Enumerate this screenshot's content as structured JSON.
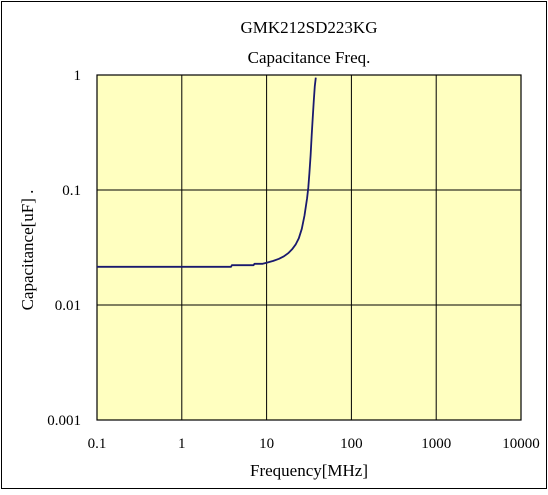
{
  "chart_data": {
    "type": "line",
    "title": "GMK212SD223KG",
    "subtitle": "Capacitance Freq.",
    "xlabel": "Frequency[MHz]",
    "ylabel": "Capacitance[uF]  .",
    "xscale": "log",
    "yscale": "log",
    "xlim": [
      0.1,
      10000
    ],
    "ylim": [
      0.001,
      1
    ],
    "x_ticks": [
      "0.1",
      "1",
      "10",
      "100",
      "1000",
      "10000"
    ],
    "y_ticks": [
      "0.001",
      "0.01",
      "0.1",
      "1"
    ],
    "grid": true,
    "legend": "none",
    "colors": {
      "plot_background": "#ffffc0",
      "line": "#1a1a6e",
      "frame": "#000000"
    },
    "series": [
      {
        "x": [
          0.1,
          1,
          3.8,
          3.9,
          5,
          7,
          7.2,
          9,
          10,
          12,
          14,
          16,
          18,
          20,
          22,
          24,
          26,
          28,
          30,
          31,
          32,
          33,
          34,
          35,
          36,
          37,
          38
        ],
        "y": [
          0.0215,
          0.0215,
          0.0215,
          0.0222,
          0.0222,
          0.0222,
          0.0228,
          0.0228,
          0.0233,
          0.0242,
          0.0252,
          0.0265,
          0.0282,
          0.0305,
          0.0335,
          0.038,
          0.046,
          0.06,
          0.085,
          0.105,
          0.14,
          0.2,
          0.3,
          0.42,
          0.6,
          0.8,
          0.95
        ]
      }
    ]
  }
}
